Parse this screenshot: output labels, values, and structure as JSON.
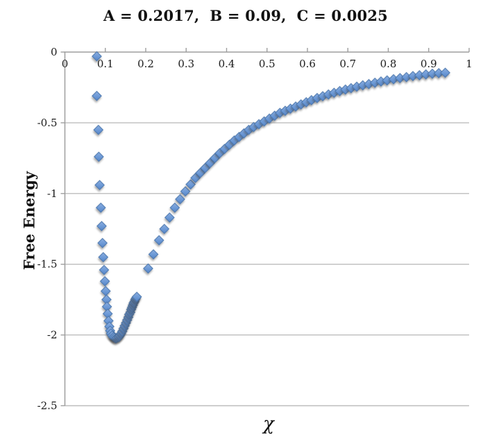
{
  "chart_data": {
    "type": "scatter",
    "title": "A = 0.2017,  B = 0.09,  C = 0.0025",
    "xlabel": "χ",
    "ylabel": "Free Energy",
    "xlim": [
      0,
      1
    ],
    "ylim": [
      -2.5,
      0
    ],
    "grid": true,
    "legend": "none",
    "x_ticks": [
      "0",
      "0.1",
      "0.2",
      "0.3",
      "0.4",
      "0.5",
      "0.6",
      "0.7",
      "0.8",
      "0.9",
      "1"
    ],
    "x_tick_values": [
      0,
      0.1,
      0.2,
      0.3,
      0.4,
      0.5,
      0.6,
      0.7,
      0.8,
      0.9,
      1
    ],
    "y_ticks": [
      "0",
      "-0.5",
      "-1",
      "-1.5",
      "-2",
      "-2.5"
    ],
    "y_tick_values": [
      0,
      -0.5,
      -1,
      -1.5,
      -2,
      -2.5
    ],
    "series": [
      {
        "name": "Free Energy",
        "marker": "diamond",
        "points": [
          [
            0.079,
            -0.03
          ],
          [
            0.079,
            -0.31
          ],
          [
            0.083,
            -0.55
          ],
          [
            0.084,
            -0.74
          ],
          [
            0.086,
            -0.94
          ],
          [
            0.089,
            -1.1
          ],
          [
            0.091,
            -1.23
          ],
          [
            0.093,
            -1.35
          ],
          [
            0.095,
            -1.45
          ],
          [
            0.097,
            -1.54
          ],
          [
            0.099,
            -1.62
          ],
          [
            0.101,
            -1.69
          ],
          [
            0.103,
            -1.75
          ],
          [
            0.104,
            -1.8
          ],
          [
            0.106,
            -1.85
          ],
          [
            0.108,
            -1.9
          ],
          [
            0.11,
            -1.94
          ],
          [
            0.112,
            -1.97
          ],
          [
            0.114,
            -1.99
          ],
          [
            0.117,
            -2.005
          ],
          [
            0.12,
            -2.015
          ],
          [
            0.123,
            -2.02
          ],
          [
            0.126,
            -2.025
          ],
          [
            0.129,
            -2.02
          ],
          [
            0.133,
            -2.015
          ],
          [
            0.136,
            -2.005
          ],
          [
            0.139,
            -1.99
          ],
          [
            0.142,
            -1.975
          ],
          [
            0.145,
            -1.955
          ],
          [
            0.148,
            -1.935
          ],
          [
            0.151,
            -1.915
          ],
          [
            0.154,
            -1.895
          ],
          [
            0.157,
            -1.875
          ],
          [
            0.159,
            -1.855
          ],
          [
            0.162,
            -1.84
          ],
          [
            0.164,
            -1.82
          ],
          [
            0.166,
            -1.805
          ],
          [
            0.168,
            -1.79
          ],
          [
            0.17,
            -1.775
          ],
          [
            0.172,
            -1.765
          ],
          [
            0.174,
            -1.75
          ],
          [
            0.176,
            -1.74
          ],
          [
            0.178,
            -1.73
          ],
          [
            0.206,
            -1.53
          ],
          [
            0.219,
            -1.43
          ],
          [
            0.233,
            -1.33
          ],
          [
            0.246,
            -1.25
          ],
          [
            0.259,
            -1.17
          ],
          [
            0.272,
            -1.1
          ],
          [
            0.285,
            -1.04
          ],
          [
            0.298,
            -0.985
          ],
          [
            0.311,
            -0.935
          ],
          [
            0.323,
            -0.89
          ],
          [
            0.335,
            -0.855
          ],
          [
            0.347,
            -0.82
          ],
          [
            0.359,
            -0.785
          ],
          [
            0.371,
            -0.75
          ],
          [
            0.383,
            -0.715
          ],
          [
            0.395,
            -0.685
          ],
          [
            0.407,
            -0.655
          ],
          [
            0.419,
            -0.625
          ],
          [
            0.431,
            -0.6
          ],
          [
            0.443,
            -0.575
          ],
          [
            0.455,
            -0.55
          ],
          [
            0.467,
            -0.53
          ],
          [
            0.48,
            -0.51
          ],
          [
            0.493,
            -0.49
          ],
          [
            0.506,
            -0.47
          ],
          [
            0.519,
            -0.45
          ],
          [
            0.532,
            -0.43
          ],
          [
            0.545,
            -0.415
          ],
          [
            0.558,
            -0.4
          ],
          [
            0.571,
            -0.385
          ],
          [
            0.584,
            -0.37
          ],
          [
            0.597,
            -0.355
          ],
          [
            0.61,
            -0.34
          ],
          [
            0.624,
            -0.325
          ],
          [
            0.638,
            -0.312
          ],
          [
            0.652,
            -0.3
          ],
          [
            0.666,
            -0.288
          ],
          [
            0.68,
            -0.276
          ],
          [
            0.694,
            -0.265
          ],
          [
            0.708,
            -0.255
          ],
          [
            0.722,
            -0.245
          ],
          [
            0.737,
            -0.235
          ],
          [
            0.752,
            -0.226
          ],
          [
            0.767,
            -0.217
          ],
          [
            0.782,
            -0.208
          ],
          [
            0.797,
            -0.2
          ],
          [
            0.813,
            -0.192
          ],
          [
            0.829,
            -0.184
          ],
          [
            0.845,
            -0.177
          ],
          [
            0.861,
            -0.17
          ],
          [
            0.877,
            -0.164
          ],
          [
            0.893,
            -0.158
          ],
          [
            0.909,
            -0.153
          ],
          [
            0.925,
            -0.149
          ],
          [
            0.941,
            -0.146
          ]
        ]
      }
    ]
  },
  "style": {
    "marker_fill": "#6C99D6",
    "marker_fill_light": "#8CAEE0",
    "marker_fill_dark": "#5684C6",
    "marker_border": "#4A76AC",
    "grid_color": "#BDBDBD",
    "axis_color": "#9E9E9E",
    "text_color": "#1a1a1a",
    "background": "#FFFFFF"
  }
}
